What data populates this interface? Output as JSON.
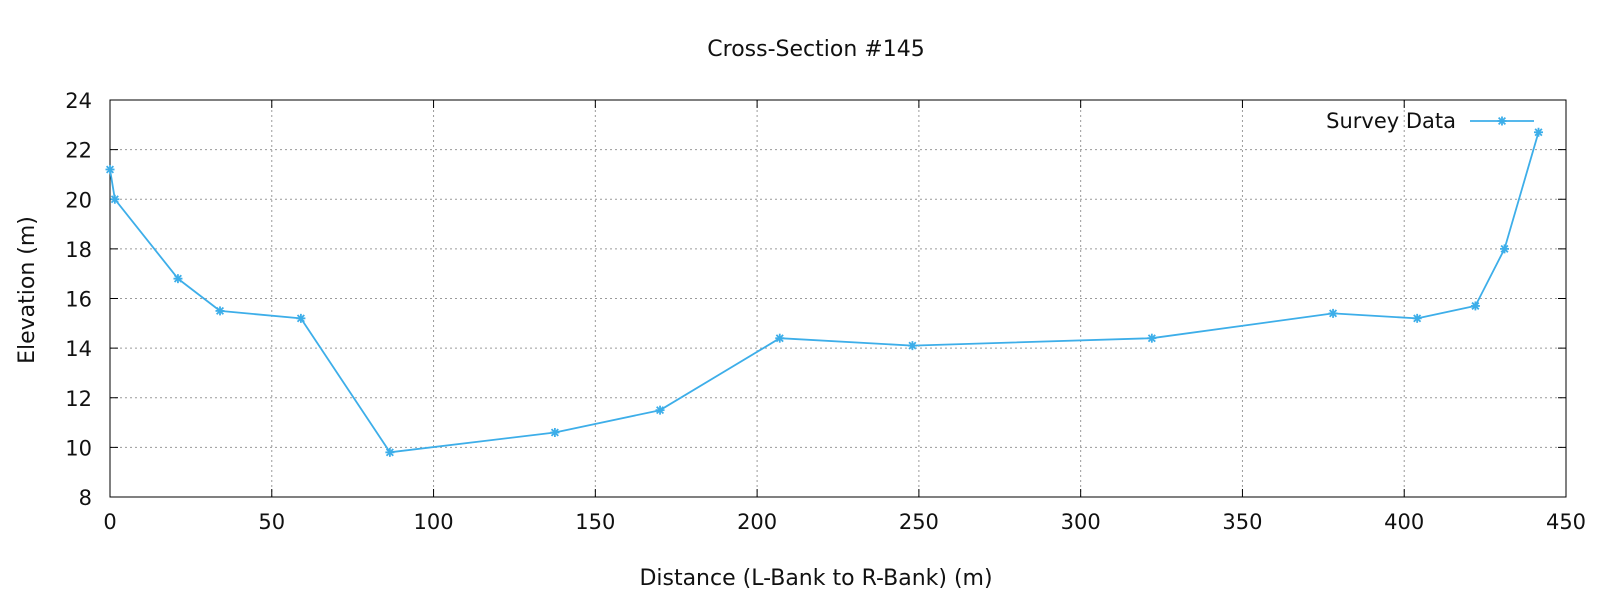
{
  "chart_data": {
    "type": "line",
    "title": "Cross-Section #145",
    "xlabel": "Distance (L-Bank to R-Bank) (m)",
    "ylabel": "Elevation (m)",
    "xlim": [
      0,
      450
    ],
    "ylim": [
      8,
      24
    ],
    "xticks": [
      0,
      50,
      100,
      150,
      200,
      250,
      300,
      350,
      400,
      450
    ],
    "yticks": [
      8,
      10,
      12,
      14,
      16,
      18,
      20,
      22,
      24
    ],
    "grid": true,
    "legend_position": "top-right",
    "series": [
      {
        "name": "Survey Data",
        "color": "#3daee9",
        "marker": "asterisk",
        "x": [
          0,
          1.5,
          21,
          34,
          59,
          86.5,
          137.5,
          170,
          207,
          248,
          322,
          378,
          404,
          422,
          431,
          441.5
        ],
        "y": [
          21.2,
          20.0,
          16.8,
          15.5,
          15.2,
          9.8,
          10.6,
          11.5,
          14.4,
          14.1,
          14.4,
          15.4,
          15.2,
          15.7,
          18.0,
          22.7
        ]
      }
    ]
  }
}
